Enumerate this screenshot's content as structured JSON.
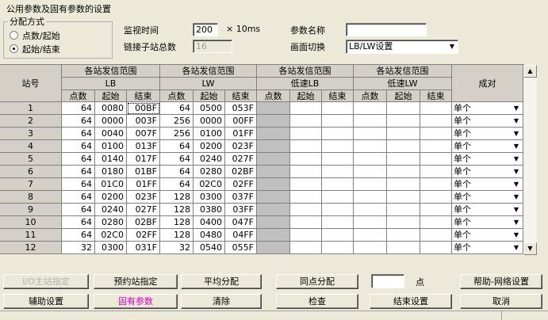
{
  "title": "公用参数及固有参数的设置",
  "allocation": {
    "label": "分配方式",
    "options": [
      "点数/起始",
      "起始/结束"
    ],
    "selected": 1
  },
  "monitor_time": {
    "label": "监视时间",
    "value": "200",
    "unit": "× 10ms"
  },
  "station_count": {
    "label": "链接子站总数",
    "value": "16"
  },
  "param_name": {
    "label": "参数名称"
  },
  "screen_switch": {
    "label": "画面切换",
    "value": "LB/LW设置"
  },
  "table": {
    "station_header": "站号",
    "groups": [
      {
        "title": "各站发信范围",
        "sub": "LB"
      },
      {
        "title": "各站发信范围",
        "sub": "LW"
      },
      {
        "title": "各站发信范围",
        "sub": "低速LB"
      },
      {
        "title": "各站发信范围",
        "sub": "低速LW"
      }
    ],
    "columns": [
      "点数",
      "起始",
      "结束"
    ],
    "pair_header": "成对",
    "rows": [
      {
        "station": 1,
        "lb": [
          64,
          "0080",
          "00BF"
        ],
        "lw": [
          64,
          "0500",
          "053F"
        ],
        "pair": "单个"
      },
      {
        "station": 2,
        "lb": [
          64,
          "0000",
          "003F"
        ],
        "lw": [
          256,
          "0000",
          "00FF"
        ],
        "pair": "单个"
      },
      {
        "station": 3,
        "lb": [
          64,
          "0040",
          "007F"
        ],
        "lw": [
          256,
          "0100",
          "01FF"
        ],
        "pair": "单个"
      },
      {
        "station": 4,
        "lb": [
          64,
          "0100",
          "013F"
        ],
        "lw": [
          64,
          "0200",
          "023F"
        ],
        "pair": "单个"
      },
      {
        "station": 5,
        "lb": [
          64,
          "0140",
          "017F"
        ],
        "lw": [
          64,
          "0240",
          "027F"
        ],
        "pair": "单个"
      },
      {
        "station": 6,
        "lb": [
          64,
          "0180",
          "01BF"
        ],
        "lw": [
          64,
          "0280",
          "02BF"
        ],
        "pair": "单个"
      },
      {
        "station": 7,
        "lb": [
          64,
          "01C0",
          "01FF"
        ],
        "lw": [
          64,
          "02C0",
          "02FF"
        ],
        "pair": "单个"
      },
      {
        "station": 8,
        "lb": [
          64,
          "0200",
          "023F"
        ],
        "lw": [
          128,
          "0300",
          "037F"
        ],
        "pair": "单个"
      },
      {
        "station": 9,
        "lb": [
          64,
          "0240",
          "027F"
        ],
        "lw": [
          128,
          "0380",
          "03FF"
        ],
        "pair": "单个"
      },
      {
        "station": 10,
        "lb": [
          64,
          "0280",
          "02BF"
        ],
        "lw": [
          128,
          "0400",
          "047F"
        ],
        "pair": "单个"
      },
      {
        "station": 11,
        "lb": [
          64,
          "02C0",
          "02FF"
        ],
        "lw": [
          128,
          "0480",
          "04FF"
        ],
        "pair": "单个"
      },
      {
        "station": 12,
        "lb": [
          32,
          "0300",
          "031F"
        ],
        "lw": [
          32,
          "0540",
          "055F"
        ],
        "pair": "单个"
      }
    ]
  },
  "buttons_row1": [
    "I/O主站指定",
    "预约站指定",
    "平均分配",
    "同点分配"
  ],
  "points_unit": "点",
  "help_button": "帮助-网络设置",
  "buttons_row2": [
    "辅助设置",
    "固有参数",
    "清除",
    "检查",
    "结束设置",
    "取消"
  ]
}
